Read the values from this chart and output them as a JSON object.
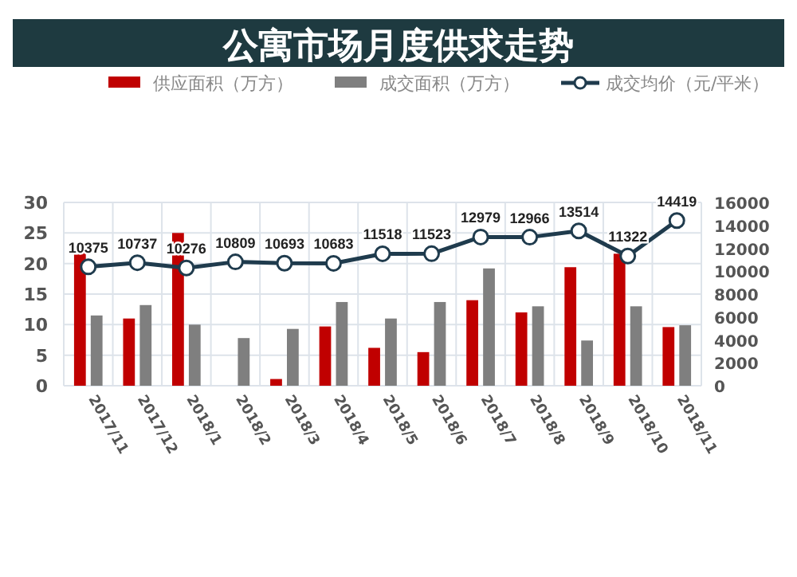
{
  "chart_data": {
    "type": "bar",
    "title": "公寓市场月度供求走势",
    "categories": [
      "2017/11",
      "2017/12",
      "2018/1",
      "2018/2",
      "2018/3",
      "2018/4",
      "2018/5",
      "2018/6",
      "2018/7",
      "2018/8",
      "2018/9",
      "2018/10",
      "2018/11"
    ],
    "series": [
      {
        "name": "供应面积（万方）",
        "color": "#c00000",
        "values": [
          22.5,
          11,
          25,
          null,
          1.1,
          9.7,
          6.2,
          5.5,
          14,
          12,
          19.4,
          21.6,
          9.6
        ]
      },
      {
        "name": "成交面积（万方）",
        "color": "#7f7f7f",
        "values": [
          11.5,
          13.2,
          10,
          7.8,
          9.3,
          13.7,
          11,
          13.7,
          19.2,
          13,
          7.4,
          13,
          9.9
        ]
      },
      {
        "name": "成交均价（元/平米）",
        "color": "#1f3b4d",
        "type": "line",
        "axis": "y2",
        "marker": "circle",
        "data_labels": true,
        "values": [
          10375,
          10737,
          10276,
          10809,
          10693,
          10683,
          11518,
          11523,
          12979,
          12966,
          13514,
          11322,
          14419
        ]
      }
    ],
    "ylim": [
      0,
      30
    ],
    "yticks": [
      0,
      5,
      10,
      15,
      20,
      25,
      30
    ],
    "y2lim": [
      0,
      16000
    ],
    "y2ticks": [
      0,
      2000,
      4000,
      6000,
      8000,
      10000,
      12000,
      14000,
      16000
    ],
    "grid": true,
    "legend": "top"
  }
}
